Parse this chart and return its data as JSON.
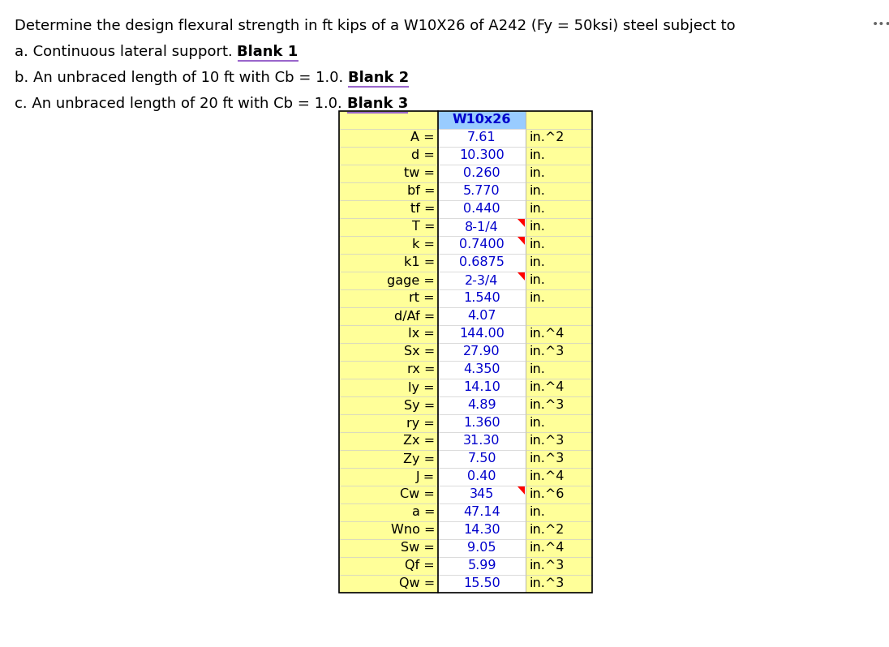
{
  "title_text": "Determine the design flexural strength in ft kips of a W10X26 of A242 (Fy = 50ksi) steel subject to",
  "line_a": "a. Continuous lateral support. ",
  "line_a_bold": "Blank 1",
  "line_b": "b. An unbraced length of 10 ft with Cb = 1.0. ",
  "line_b_bold": "Blank 2",
  "line_c": "c. An unbraced length of 20 ft with Cb = 1.0. ",
  "line_c_bold": "Blank 3",
  "header": "W10x26",
  "rows": [
    {
      "label": "A =",
      "value": "7.61",
      "unit": "in.^2",
      "red_corner": false
    },
    {
      "label": "d =",
      "value": "10.300",
      "unit": "in.",
      "red_corner": false
    },
    {
      "label": "tw =",
      "value": "0.260",
      "unit": "in.",
      "red_corner": false
    },
    {
      "label": "bf =",
      "value": "5.770",
      "unit": "in.",
      "red_corner": false
    },
    {
      "label": "tf =",
      "value": "0.440",
      "unit": "in.",
      "red_corner": false
    },
    {
      "label": "T =",
      "value": "8-1/4",
      "unit": "in.",
      "red_corner": true
    },
    {
      "label": "k =",
      "value": "0.7400",
      "unit": "in.",
      "red_corner": true
    },
    {
      "label": "k1 =",
      "value": "0.6875",
      "unit": "in.",
      "red_corner": false
    },
    {
      "label": "gage =",
      "value": "2-3/4",
      "unit": "in.",
      "red_corner": true
    },
    {
      "label": "rt =",
      "value": "1.540",
      "unit": "in.",
      "red_corner": false
    },
    {
      "label": "d/Af =",
      "value": "4.07",
      "unit": "",
      "red_corner": false
    },
    {
      "label": "Ix =",
      "value": "144.00",
      "unit": "in.^4",
      "red_corner": false
    },
    {
      "label": "Sx =",
      "value": "27.90",
      "unit": "in.^3",
      "red_corner": false
    },
    {
      "label": "rx =",
      "value": "4.350",
      "unit": "in.",
      "red_corner": false
    },
    {
      "label": "ly =",
      "value": "14.10",
      "unit": "in.^4",
      "red_corner": false
    },
    {
      "label": "Sy =",
      "value": "4.89",
      "unit": "in.^3",
      "red_corner": false
    },
    {
      "label": "ry =",
      "value": "1.360",
      "unit": "in.",
      "red_corner": false
    },
    {
      "label": "Zx =",
      "value": "31.30",
      "unit": "in.^3",
      "red_corner": false
    },
    {
      "label": "Zy =",
      "value": "7.50",
      "unit": "in.^3",
      "red_corner": false
    },
    {
      "label": "J =",
      "value": "0.40",
      "unit": "in.^4",
      "red_corner": false
    },
    {
      "label": "Cw =",
      "value": "345",
      "unit": "in.^6",
      "red_corner": true
    },
    {
      "label": "a =",
      "value": "47.14",
      "unit": "in.",
      "red_corner": false
    },
    {
      "label": "Wno =",
      "value": "14.30",
      "unit": "in.^2",
      "red_corner": false
    },
    {
      "label": "Sw =",
      "value": "9.05",
      "unit": "in.^4",
      "red_corner": false
    },
    {
      "label": "Qf =",
      "value": "5.99",
      "unit": "in.^3",
      "red_corner": false
    },
    {
      "label": "Qw =",
      "value": "15.50",
      "unit": "in.^3",
      "red_corner": false
    }
  ],
  "bg_color": "#FFFF99",
  "header_bg": "#99CCFF",
  "value_color": "#0000CC",
  "label_color": "#000000",
  "unit_color": "#000000",
  "header_color": "#0000CC",
  "text_color": "#000000",
  "blank_color": "#000000",
  "underline_color": "#9966CC",
  "dots_color": "#666666",
  "font_size": 13.0,
  "table_font_size": 11.5
}
